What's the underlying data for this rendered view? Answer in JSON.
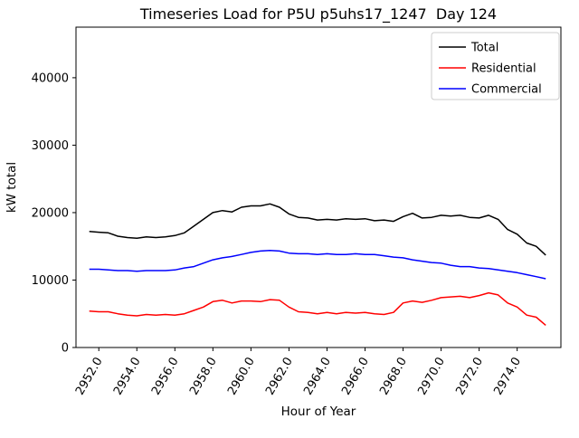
{
  "figure": {
    "title": "Timeseries Load for P5U p5uhs17_1247  Day 124",
    "xlabel": "Hour of Year",
    "ylabel": "kW total"
  },
  "chart_data": {
    "type": "line",
    "title": "Timeseries Load for P5U p5uhs17_1247  Day 124",
    "xlabel": "Hour of Year",
    "ylabel": "kW total",
    "xlim": [
      2950.8,
      2976.3
    ],
    "ylim": [
      0,
      47500
    ],
    "xticks": [
      2952,
      2954,
      2956,
      2958,
      2960,
      2962,
      2964,
      2966,
      2968,
      2970,
      2972,
      2974
    ],
    "xtick_labels": [
      "2952.0",
      "2954.0",
      "2956.0",
      "2958.0",
      "2960.0",
      "2962.0",
      "2964.0",
      "2966.0",
      "2968.0",
      "2970.0",
      "2972.0",
      "2974.0"
    ],
    "yticks": [
      0,
      10000,
      20000,
      30000,
      40000
    ],
    "ytick_labels": [
      "0",
      "10000",
      "20000",
      "30000",
      "40000"
    ],
    "grid": false,
    "legend_position": "upper right",
    "x": [
      2951.5,
      2952.0,
      2952.5,
      2953.0,
      2953.5,
      2954.0,
      2954.5,
      2955.0,
      2955.5,
      2956.0,
      2956.5,
      2957.0,
      2957.5,
      2958.0,
      2958.5,
      2959.0,
      2959.5,
      2960.0,
      2960.5,
      2961.0,
      2961.5,
      2962.0,
      2962.5,
      2963.0,
      2963.5,
      2964.0,
      2964.5,
      2965.0,
      2965.5,
      2966.0,
      2966.5,
      2967.0,
      2967.5,
      2968.0,
      2968.5,
      2969.0,
      2969.5,
      2970.0,
      2970.5,
      2971.0,
      2971.5,
      2972.0,
      2972.5,
      2973.0,
      2973.5,
      2974.0,
      2974.5,
      2975.0,
      2975.5
    ],
    "series": [
      {
        "name": "Total",
        "color": "#000000",
        "values": [
          17200,
          17100,
          17000,
          16500,
          16300,
          16200,
          16400,
          16300,
          16400,
          16600,
          17000,
          18000,
          19000,
          20000,
          20300,
          20100,
          20800,
          21000,
          21000,
          21300,
          20800,
          19800,
          19300,
          19200,
          18900,
          19000,
          18900,
          19100,
          19000,
          19100,
          18800,
          18900,
          18700,
          19400,
          19900,
          19200,
          19300,
          19600,
          19500,
          19600,
          19300,
          19200,
          19600,
          19000,
          17500,
          16800,
          15500,
          15000,
          13700
        ]
      },
      {
        "name": "Residential",
        "color": "#ff0000",
        "values": [
          5400,
          5300,
          5300,
          5000,
          4800,
          4700,
          4900,
          4800,
          4900,
          4800,
          5000,
          5500,
          6000,
          6800,
          7000,
          6600,
          6900,
          6900,
          6800,
          7100,
          7000,
          6000,
          5300,
          5200,
          5000,
          5200,
          5000,
          5200,
          5100,
          5200,
          5000,
          4900,
          5200,
          6600,
          6900,
          6700,
          7000,
          7400,
          7500,
          7600,
          7400,
          7700,
          8100,
          7800,
          6600,
          6000,
          4800,
          4500,
          3300
        ]
      },
      {
        "name": "Commercial",
        "color": "#0000ff",
        "values": [
          11600,
          11600,
          11500,
          11400,
          11400,
          11300,
          11400,
          11400,
          11400,
          11500,
          11800,
          12000,
          12500,
          13000,
          13300,
          13500,
          13800,
          14100,
          14300,
          14400,
          14300,
          14000,
          13900,
          13900,
          13800,
          13900,
          13800,
          13800,
          13900,
          13800,
          13800,
          13600,
          13400,
          13300,
          13000,
          12800,
          12600,
          12500,
          12200,
          12000,
          12000,
          11800,
          11700,
          11500,
          11300,
          11100,
          10800,
          10500,
          10200
        ]
      }
    ]
  }
}
